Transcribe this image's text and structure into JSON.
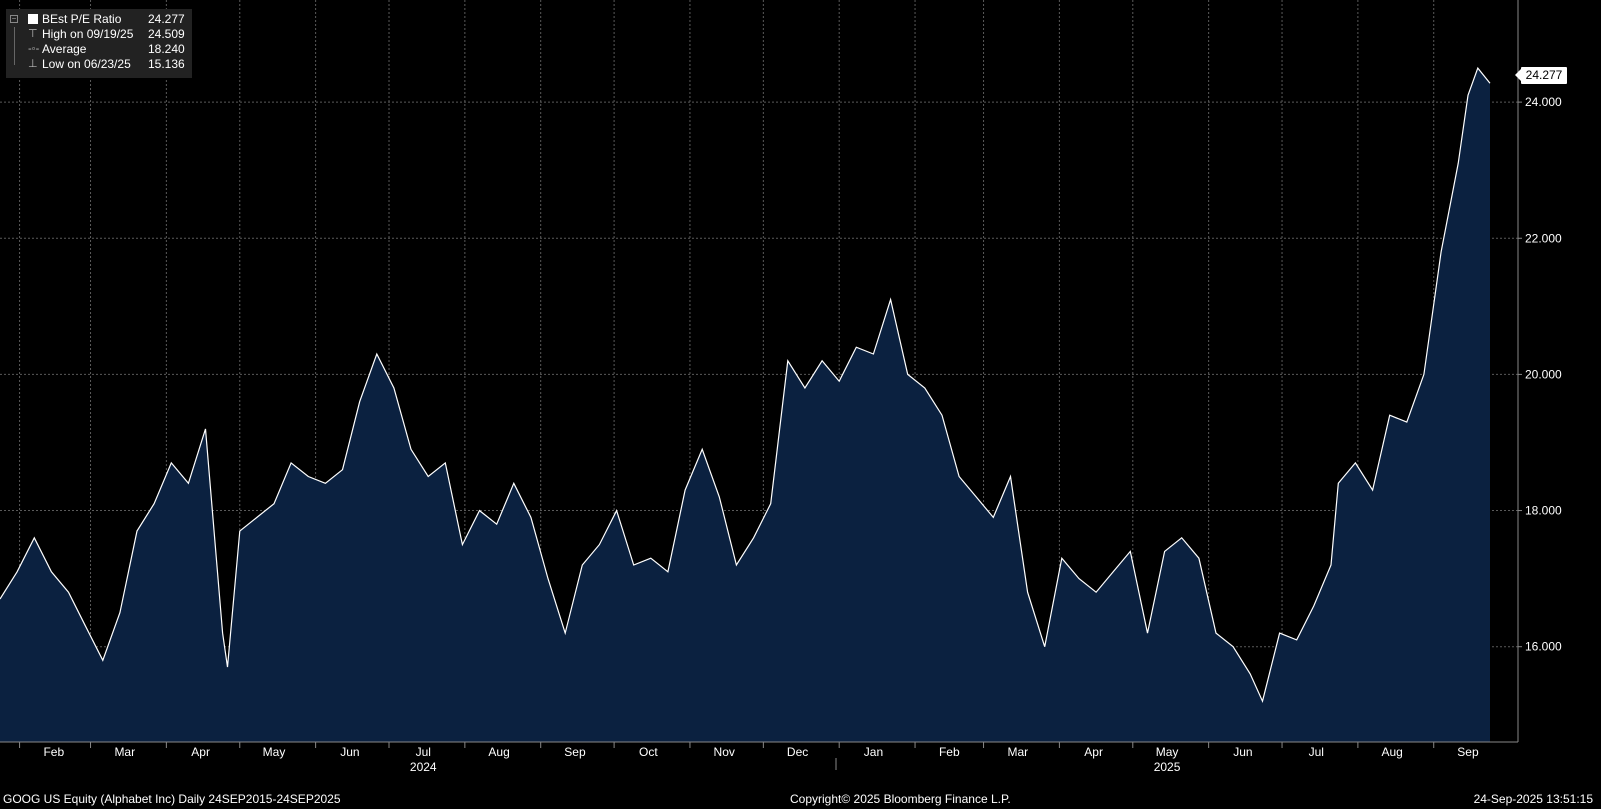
{
  "legend": {
    "title_label": "BEst P/E Ratio",
    "title_value": "24.277",
    "high_label": "High on 09/19/25",
    "high_value": "24.509",
    "avg_label": "Average",
    "avg_value": "18.240",
    "low_label": "Low on 06/23/25",
    "low_value": "15.136"
  },
  "last_value_tag": "24.277",
  "footer": {
    "left": "GOOG US Equity (Alphabet Inc)  Daily 24SEP2015-24SEP2025",
    "center": "Copyright© 2025 Bloomberg Finance L.P.",
    "right": "24-Sep-2025 13:51:15"
  },
  "colors": {
    "background": "#000000",
    "area_fill": "#0b2140",
    "line": "#ffffff",
    "grid": "#5a5a5a"
  },
  "chart_data": {
    "type": "area",
    "series": [
      {
        "name": "BEst P/E Ratio",
        "x": [
          "2024-01-24",
          "2024-01-31",
          "2024-02-07",
          "2024-02-14",
          "2024-02-21",
          "2024-02-28",
          "2024-03-06",
          "2024-03-13",
          "2024-03-20",
          "2024-03-27",
          "2024-04-03",
          "2024-04-10",
          "2024-04-17",
          "2024-04-24",
          "2024-04-26",
          "2024-05-01",
          "2024-05-08",
          "2024-05-15",
          "2024-05-22",
          "2024-05-29",
          "2024-06-05",
          "2024-06-12",
          "2024-06-19",
          "2024-06-26",
          "2024-07-03",
          "2024-07-10",
          "2024-07-17",
          "2024-07-24",
          "2024-07-31",
          "2024-08-07",
          "2024-08-14",
          "2024-08-21",
          "2024-08-28",
          "2024-09-04",
          "2024-09-11",
          "2024-09-18",
          "2024-09-25",
          "2024-10-02",
          "2024-10-09",
          "2024-10-16",
          "2024-10-23",
          "2024-10-30",
          "2024-11-06",
          "2024-11-13",
          "2024-11-20",
          "2024-11-27",
          "2024-12-04",
          "2024-12-11",
          "2024-12-18",
          "2024-12-25",
          "2025-01-01",
          "2025-01-08",
          "2025-01-15",
          "2025-01-22",
          "2025-01-29",
          "2025-02-05",
          "2025-02-12",
          "2025-02-19",
          "2025-02-26",
          "2025-03-05",
          "2025-03-12",
          "2025-03-19",
          "2025-03-26",
          "2025-04-02",
          "2025-04-09",
          "2025-04-16",
          "2025-04-23",
          "2025-04-30",
          "2025-05-07",
          "2025-05-14",
          "2025-05-21",
          "2025-05-28",
          "2025-06-04",
          "2025-06-11",
          "2025-06-18",
          "2025-06-23",
          "2025-06-30",
          "2025-07-07",
          "2025-07-14",
          "2025-07-21",
          "2025-07-24",
          "2025-07-31",
          "2025-08-07",
          "2025-08-14",
          "2025-08-21",
          "2025-08-28",
          "2025-09-04",
          "2025-09-11",
          "2025-09-15",
          "2025-09-19",
          "2025-09-24"
        ],
        "values": [
          16.7,
          17.1,
          17.6,
          17.1,
          16.8,
          16.3,
          15.8,
          16.5,
          17.7,
          18.1,
          18.7,
          18.4,
          19.2,
          16.2,
          15.7,
          17.7,
          17.9,
          18.1,
          18.7,
          18.5,
          18.4,
          18.6,
          19.6,
          20.3,
          19.8,
          18.9,
          18.5,
          18.7,
          17.5,
          18.0,
          17.8,
          18.4,
          17.9,
          17.0,
          16.2,
          17.2,
          17.5,
          18.0,
          17.2,
          17.3,
          17.1,
          18.3,
          18.9,
          18.2,
          17.2,
          17.6,
          18.1,
          20.2,
          19.8,
          20.2,
          19.9,
          20.4,
          20.3,
          21.1,
          20.0,
          19.8,
          19.4,
          18.5,
          18.2,
          17.9,
          18.5,
          16.8,
          16.0,
          17.3,
          17.0,
          16.8,
          17.1,
          17.4,
          16.2,
          17.4,
          17.6,
          17.3,
          16.2,
          16.0,
          15.6,
          15.2,
          16.2,
          16.1,
          16.6,
          17.2,
          18.4,
          18.7,
          18.3,
          19.4,
          19.3,
          20.0,
          21.8,
          23.1,
          24.1,
          24.5,
          24.277
        ]
      }
    ],
    "ylim": [
      14.6,
      25.5
    ],
    "y_ticks": [
      "16.000",
      "18.000",
      "20.000",
      "22.000",
      "24.000"
    ],
    "x_tick_labels": [
      "Feb",
      "Mar",
      "Apr",
      "May",
      "Jun",
      "Jul",
      "Aug",
      "Sep",
      "Oct",
      "Nov",
      "Dec",
      "Jan",
      "Feb",
      "Mar",
      "Apr",
      "May",
      "Jun",
      "Jul",
      "Aug",
      "Sep"
    ],
    "x_tick_dates": [
      "2024-02-15",
      "2024-03-15",
      "2024-04-15",
      "2024-05-15",
      "2024-06-15",
      "2024-07-15",
      "2024-08-15",
      "2024-09-15",
      "2024-10-15",
      "2024-11-15",
      "2024-12-15",
      "2025-01-15",
      "2025-02-15",
      "2025-03-15",
      "2025-04-15",
      "2025-05-15",
      "2025-06-15",
      "2025-07-15",
      "2025-08-15",
      "2025-09-15"
    ],
    "x_divider_dates": [
      "2024-02-01",
      "2024-03-01",
      "2024-04-01",
      "2024-05-01",
      "2024-06-01",
      "2024-07-01",
      "2024-08-01",
      "2024-09-01",
      "2024-10-01",
      "2024-11-01",
      "2024-12-01",
      "2025-01-01",
      "2025-02-01",
      "2025-03-01",
      "2025-04-01",
      "2025-05-01",
      "2025-06-01",
      "2025-07-01",
      "2025-08-01",
      "2025-09-01"
    ],
    "year_labels": [
      {
        "text": "2024",
        "date": "2024-07-15"
      },
      {
        "text": "2025",
        "date": "2025-05-15"
      }
    ],
    "grid": true,
    "legend_position": "top-left"
  }
}
